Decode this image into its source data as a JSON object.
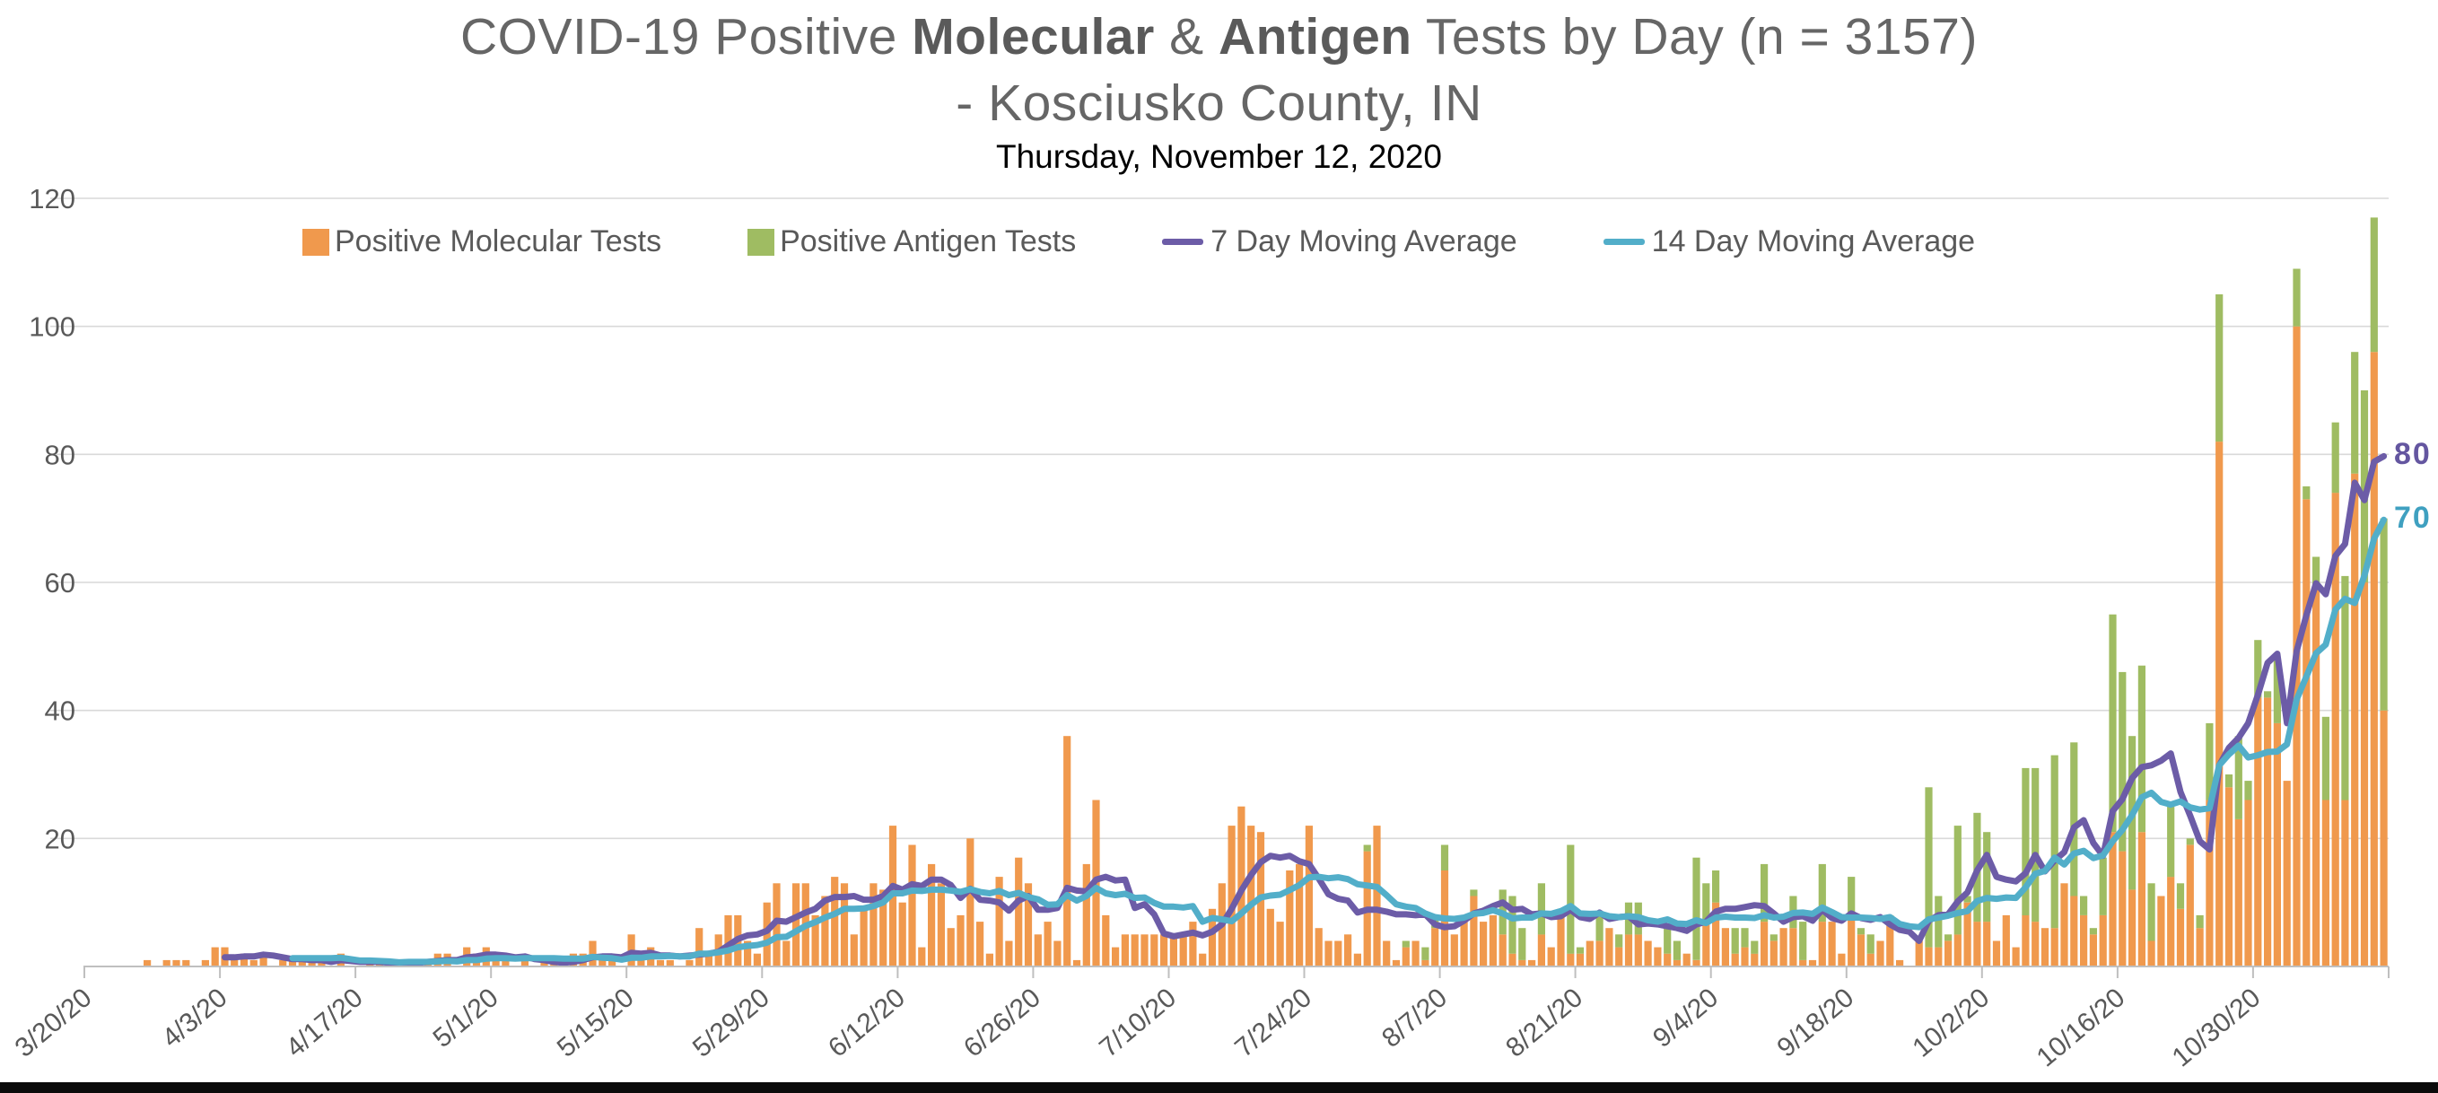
{
  "title": {
    "part1": "COVID-19 Positive ",
    "bold1": "Molecular",
    "amp": " & ",
    "bold2": "Antigen",
    "part2": " Tests by Day (n = 3157)",
    "line2": "- Kosciusko County, IN",
    "subtitle": "Thursday, November 12, 2020"
  },
  "legend": {
    "items": [
      {
        "label": "Positive Molecular Tests",
        "swatch": "square",
        "color": "#F0994D"
      },
      {
        "label": "Positive Antigen Tests",
        "swatch": "square",
        "color": "#9FBC62"
      },
      {
        "label": "7 Day Moving Average",
        "swatch": "line",
        "color": "#6C5CA7"
      },
      {
        "label": "14 Day Moving Average",
        "swatch": "line",
        "color": "#52AEC9"
      }
    ]
  },
  "y_axis": {
    "ticks": [
      20,
      40,
      60,
      80,
      100,
      120
    ]
  },
  "x_axis": {
    "labels": [
      "3/20/20",
      "4/3/20",
      "4/17/20",
      "5/1/20",
      "5/15/20",
      "5/29/20",
      "6/12/20",
      "6/26/20",
      "7/10/20",
      "7/24/20",
      "8/7/20",
      "8/21/20",
      "9/4/20",
      "9/18/20",
      "10/2/20",
      "10/16/20",
      "10/30/20"
    ],
    "tick_every_days": 14
  },
  "line_end_labels": {
    "ma7": "80",
    "ma14": "70"
  },
  "chart_data": {
    "type": "bar",
    "stacked": true,
    "title": "COVID-19 Positive Molecular & Antigen Tests by Day (n = 3157) - Kosciusko County, IN",
    "subtitle": "Thursday, November 12, 2020",
    "n_total_label": 3157,
    "x_start": "3/20/20",
    "x_end": "11/12/20",
    "n_days": 238,
    "ylim": [
      0,
      120
    ],
    "grid": true,
    "legend_position": "top",
    "x_tick_labels": [
      "3/20/20",
      "4/3/20",
      "4/17/20",
      "5/1/20",
      "5/15/20",
      "5/29/20",
      "6/12/20",
      "6/26/20",
      "7/10/20",
      "7/24/20",
      "8/7/20",
      "8/21/20",
      "9/4/20",
      "9/18/20",
      "10/2/20",
      "10/16/20",
      "10/30/20"
    ],
    "series": [
      {
        "name": "Positive Molecular Tests",
        "type": "bar",
        "color": "#F0994D",
        "values": [
          0,
          0,
          0,
          0,
          0,
          0,
          1,
          0,
          1,
          1,
          1,
          0,
          1,
          3,
          3,
          1,
          2,
          1,
          2,
          0,
          1,
          1,
          1,
          1,
          1,
          0,
          2,
          0,
          0,
          1,
          1,
          0,
          0,
          1,
          1,
          1,
          2,
          2,
          0,
          3,
          2,
          3,
          1,
          1,
          0,
          1,
          0,
          1,
          1,
          0,
          2,
          2,
          4,
          1,
          1,
          0,
          5,
          1,
          3,
          1,
          1,
          0,
          1,
          6,
          2,
          5,
          8,
          8,
          4,
          2,
          10,
          13,
          4,
          13,
          13,
          8,
          11,
          14,
          13,
          5,
          9,
          13,
          12,
          22,
          10,
          19,
          3,
          16,
          13,
          6,
          8,
          20,
          7,
          2,
          14,
          4,
          17,
          13,
          5,
          7,
          4,
          36,
          1,
          16,
          26,
          8,
          3,
          5,
          5,
          5,
          5,
          5,
          5,
          5,
          7,
          2,
          9,
          13,
          22,
          25,
          22,
          21,
          9,
          7,
          15,
          16,
          22,
          6,
          4,
          4,
          5,
          2,
          18,
          22,
          4,
          1,
          3,
          4,
          1,
          6,
          15,
          5,
          7,
          11,
          7,
          8,
          5,
          2,
          1,
          1,
          5,
          3,
          9,
          2,
          2,
          4,
          4,
          6,
          3,
          5,
          5,
          4,
          3,
          2,
          1,
          2,
          1,
          7,
          10,
          6,
          2,
          3,
          2,
          7,
          4,
          6,
          6,
          1,
          1,
          7,
          7,
          2,
          8,
          5,
          2,
          4,
          7,
          1,
          0,
          4,
          3,
          3,
          4,
          5,
          10,
          7,
          7,
          4,
          8,
          3,
          8,
          7,
          6,
          6,
          13,
          11,
          8,
          5,
          8,
          21,
          18,
          12,
          21,
          4,
          11,
          14,
          9,
          19,
          6,
          26,
          82,
          28,
          23,
          26,
          42,
          42,
          38,
          29,
          100,
          73,
          59,
          26,
          74,
          26,
          77,
          60,
          96,
          40
        ]
      },
      {
        "name": "Positive Antigen Tests",
        "type": "bar",
        "color": "#9FBC62",
        "values": [
          0,
          0,
          0,
          0,
          0,
          0,
          0,
          0,
          0,
          0,
          0,
          0,
          0,
          0,
          0,
          0,
          0,
          0,
          0,
          0,
          0,
          0,
          0,
          0,
          0,
          0,
          0,
          0,
          0,
          0,
          0,
          0,
          0,
          0,
          0,
          0,
          0,
          0,
          0,
          0,
          0,
          0,
          0,
          0,
          0,
          0,
          0,
          0,
          0,
          0,
          0,
          0,
          0,
          0,
          0,
          0,
          0,
          0,
          0,
          0,
          0,
          0,
          0,
          0,
          0,
          0,
          0,
          0,
          0,
          0,
          0,
          0,
          0,
          0,
          0,
          0,
          0,
          0,
          0,
          0,
          0,
          0,
          0,
          0,
          0,
          0,
          0,
          0,
          0,
          0,
          0,
          0,
          0,
          0,
          0,
          0,
          0,
          0,
          0,
          0,
          0,
          0,
          0,
          0,
          0,
          0,
          0,
          0,
          0,
          0,
          0,
          0,
          0,
          0,
          0,
          0,
          0,
          0,
          0,
          0,
          0,
          0,
          0,
          0,
          0,
          0,
          0,
          0,
          0,
          0,
          0,
          0,
          1,
          0,
          0,
          0,
          1,
          0,
          2,
          2,
          4,
          0,
          0,
          1,
          0,
          0,
          7,
          9,
          5,
          0,
          8,
          0,
          0,
          17,
          1,
          0,
          4,
          0,
          2,
          5,
          5,
          0,
          0,
          4,
          3,
          0,
          16,
          6,
          5,
          0,
          4,
          3,
          2,
          9,
          1,
          0,
          5,
          6,
          0,
          9,
          0,
          0,
          6,
          1,
          3,
          0,
          1,
          0,
          0,
          0,
          25,
          8,
          1,
          17,
          1,
          17,
          14,
          0,
          0,
          0,
          23,
          24,
          0,
          27,
          0,
          24,
          3,
          1,
          9,
          34,
          28,
          24,
          26,
          9,
          0,
          11,
          4,
          1,
          2,
          12,
          23,
          2,
          13,
          3,
          9,
          1,
          10,
          0,
          9,
          2,
          5,
          13,
          11,
          35,
          19,
          30,
          21,
          30
        ]
      },
      {
        "name": "7 Day Moving Average",
        "type": "line",
        "color": "#6C5CA7",
        "window": 7,
        "computed_from": "daily total of both bar series",
        "end_value_label": "80"
      },
      {
        "name": "14 Day Moving Average",
        "type": "line",
        "color": "#52AEC9",
        "window": 14,
        "computed_from": "daily total of both bar series",
        "end_value_label": "70"
      }
    ]
  },
  "colors": {
    "gridline": "#D9D9D9",
    "axis": "#BFBFBF",
    "axis_text": "#595959",
    "title_text": "#666666",
    "ma7_label": "#6456A0",
    "ma14_label": "#3FA0C0"
  }
}
